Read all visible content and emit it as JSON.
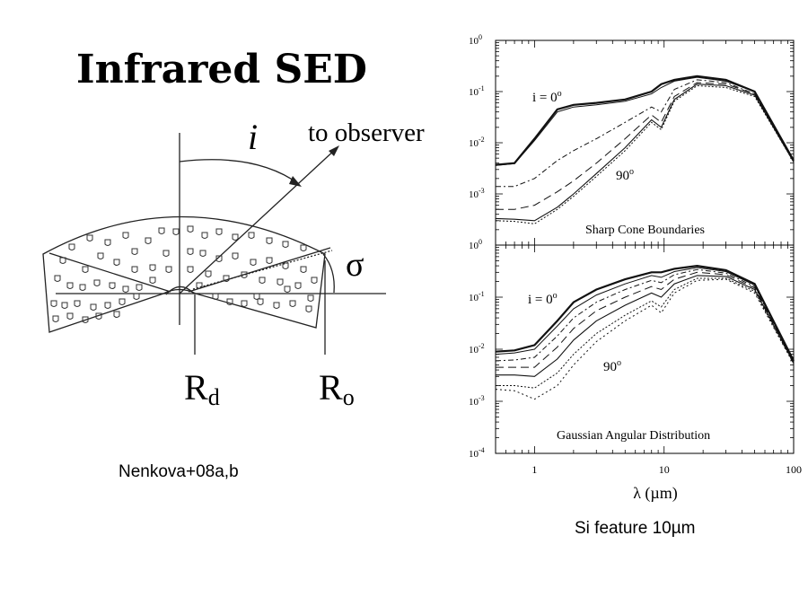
{
  "slide": {
    "title": "Infrared SED",
    "caption_left": "Nenkova+08a,b",
    "caption_right": "Si feature 10µm"
  },
  "torus_diagram": {
    "angle_label": "i",
    "observer_label": "to observer",
    "sigma_label": "σ",
    "rd_main": "R",
    "rd_sub": "d",
    "ro_main": "R",
    "ro_sub": "o"
  },
  "chart_data": [
    {
      "type": "line",
      "annotation": "Sharp Cone Boundaries",
      "inclination_top_label": "i = 0",
      "inclination_bottom_label": "90",
      "degree_mark": "o",
      "x_scale": "log",
      "y_scale": "log",
      "xlim": [
        0.5,
        100
      ],
      "ylim": [
        0.0001,
        1
      ],
      "y_ticks": [
        "10-3",
        "10-2",
        "10-1",
        "100"
      ],
      "series": [
        {
          "x": [
            0.5,
            0.7,
            1.0,
            1.5,
            2.0,
            3.0,
            5.0,
            8.0,
            9.5,
            12.0,
            18.0,
            30.0,
            50.0,
            100.0
          ],
          "y": [
            0.0037,
            0.004,
            0.012,
            0.045,
            0.055,
            0.06,
            0.07,
            0.1,
            0.14,
            0.17,
            0.2,
            0.17,
            0.1,
            0.0045
          ]
        },
        {
          "x": [
            0.5,
            0.7,
            1.0,
            1.5,
            2.0,
            3.0,
            5.0,
            8.0,
            9.5,
            12.0,
            18.0,
            30.0,
            50.0,
            100.0
          ],
          "y": [
            0.0036,
            0.0039,
            0.011,
            0.04,
            0.05,
            0.055,
            0.065,
            0.09,
            0.12,
            0.16,
            0.19,
            0.16,
            0.1,
            0.0045
          ]
        },
        {
          "x": [
            0.5,
            0.7,
            1.0,
            1.5,
            2.0,
            3.0,
            5.0,
            8.0,
            9.5,
            12.0,
            18.0,
            30.0,
            50.0,
            100.0
          ],
          "y": [
            0.0014,
            0.0014,
            0.002,
            0.0045,
            0.007,
            0.012,
            0.025,
            0.05,
            0.04,
            0.11,
            0.17,
            0.15,
            0.09,
            0.0044
          ]
        },
        {
          "x": [
            0.5,
            0.7,
            1.0,
            1.5,
            2.0,
            3.0,
            5.0,
            8.0,
            9.5,
            12.0,
            18.0,
            30.0,
            50.0,
            100.0
          ],
          "y": [
            0.0005,
            0.0005,
            0.0006,
            0.0011,
            0.0018,
            0.004,
            0.012,
            0.035,
            0.025,
            0.08,
            0.15,
            0.14,
            0.09,
            0.0043
          ]
        },
        {
          "x": [
            0.5,
            0.7,
            1.0,
            1.5,
            2.0,
            3.0,
            5.0,
            8.0,
            9.5,
            12.0,
            18.0,
            30.0,
            50.0,
            100.0
          ],
          "y": [
            0.00033,
            0.00032,
            0.0003,
            0.00055,
            0.001,
            0.0025,
            0.008,
            0.028,
            0.02,
            0.07,
            0.14,
            0.13,
            0.085,
            0.0042
          ]
        },
        {
          "x": [
            0.5,
            0.7,
            1.0,
            1.5,
            2.0,
            3.0,
            5.0,
            8.0,
            9.5,
            12.0,
            18.0,
            30.0,
            50.0,
            100.0
          ],
          "y": [
            0.0003,
            0.00029,
            0.00026,
            0.0005,
            0.0009,
            0.0022,
            0.007,
            0.025,
            0.018,
            0.065,
            0.13,
            0.12,
            0.08,
            0.0042
          ]
        }
      ]
    },
    {
      "type": "line",
      "annotation": "Gaussian Angular Distribution",
      "inclination_top_label": "i = 0",
      "inclination_bottom_label": "90",
      "degree_mark": "o",
      "xlabel": "λ (µm)",
      "x_scale": "log",
      "y_scale": "log",
      "xlim": [
        0.5,
        100
      ],
      "ylim": [
        0.0001,
        1
      ],
      "x_ticks": [
        "1",
        "10",
        "100"
      ],
      "y_ticks": [
        "10-4",
        "10-3",
        "10-2",
        "10-1",
        "100"
      ],
      "series": [
        {
          "x": [
            0.5,
            0.7,
            1.0,
            1.5,
            2.0,
            3.0,
            5.0,
            8.0,
            9.5,
            12.0,
            18.0,
            30.0,
            50.0,
            100.0
          ],
          "y": [
            0.009,
            0.0095,
            0.012,
            0.035,
            0.08,
            0.14,
            0.22,
            0.3,
            0.3,
            0.35,
            0.4,
            0.33,
            0.18,
            0.006
          ]
        },
        {
          "x": [
            0.5,
            0.7,
            1.0,
            1.5,
            2.0,
            3.0,
            5.0,
            8.0,
            9.5,
            12.0,
            18.0,
            30.0,
            50.0,
            100.0
          ],
          "y": [
            0.008,
            0.0085,
            0.01,
            0.028,
            0.06,
            0.11,
            0.18,
            0.26,
            0.24,
            0.31,
            0.37,
            0.31,
            0.17,
            0.006
          ]
        },
        {
          "x": [
            0.5,
            0.7,
            1.0,
            1.5,
            2.0,
            3.0,
            5.0,
            8.0,
            9.5,
            12.0,
            18.0,
            30.0,
            50.0,
            100.0
          ],
          "y": [
            0.006,
            0.0062,
            0.007,
            0.018,
            0.04,
            0.08,
            0.14,
            0.21,
            0.19,
            0.27,
            0.34,
            0.29,
            0.16,
            0.0058
          ]
        },
        {
          "x": [
            0.5,
            0.7,
            1.0,
            1.5,
            2.0,
            3.0,
            5.0,
            8.0,
            9.5,
            12.0,
            18.0,
            30.0,
            50.0,
            100.0
          ],
          "y": [
            0.0045,
            0.0045,
            0.0045,
            0.011,
            0.025,
            0.055,
            0.1,
            0.16,
            0.14,
            0.22,
            0.3,
            0.27,
            0.15,
            0.0056
          ]
        },
        {
          "x": [
            0.5,
            0.7,
            1.0,
            1.5,
            2.0,
            3.0,
            5.0,
            8.0,
            9.5,
            12.0,
            18.0,
            30.0,
            50.0,
            100.0
          ],
          "y": [
            0.0032,
            0.0032,
            0.003,
            0.0065,
            0.015,
            0.035,
            0.07,
            0.12,
            0.1,
            0.18,
            0.26,
            0.25,
            0.14,
            0.0055
          ]
        },
        {
          "x": [
            0.5,
            0.7,
            1.0,
            1.5,
            2.0,
            3.0,
            5.0,
            8.0,
            9.5,
            12.0,
            18.0,
            30.0,
            50.0,
            100.0
          ],
          "y": [
            0.002,
            0.002,
            0.0018,
            0.0035,
            0.008,
            0.02,
            0.045,
            0.085,
            0.065,
            0.14,
            0.23,
            0.23,
            0.13,
            0.0053
          ]
        },
        {
          "x": [
            0.5,
            0.7,
            1.0,
            1.5,
            2.0,
            3.0,
            5.0,
            8.0,
            9.5,
            12.0,
            18.0,
            30.0,
            50.0,
            100.0
          ],
          "y": [
            0.0017,
            0.0016,
            0.0011,
            0.002,
            0.005,
            0.014,
            0.035,
            0.07,
            0.05,
            0.12,
            0.21,
            0.22,
            0.12,
            0.0052
          ]
        }
      ]
    }
  ],
  "styles": {
    "line_color": "#111111",
    "frame_color": "#000000"
  }
}
